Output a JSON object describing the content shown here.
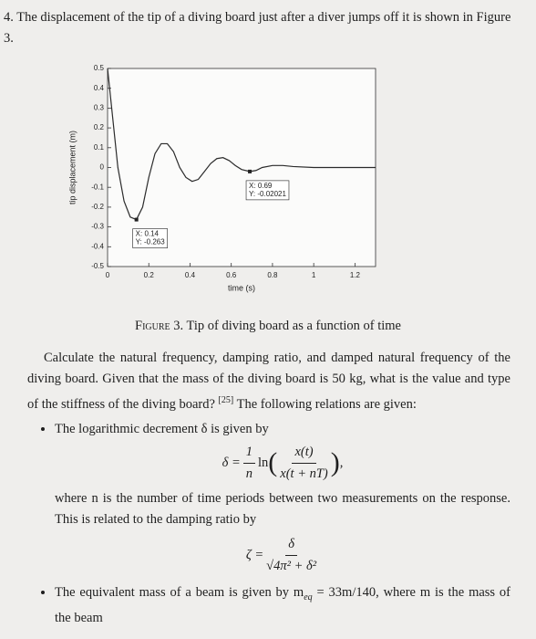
{
  "problem": {
    "number": "4.",
    "intro": "The displacement of the tip of a diving board just after a diver jumps off it is shown in Figure 3."
  },
  "figure": {
    "chart_data": {
      "type": "line",
      "x_label": "time (s)",
      "y_label": "tip displacement (m)",
      "xlim": [
        0,
        1.3
      ],
      "ylim": [
        -0.5,
        0.5
      ],
      "xticks": [
        0,
        0.2,
        0.4,
        0.6,
        0.8,
        1,
        1.2
      ],
      "yticks": [
        -0.5,
        -0.4,
        -0.3,
        -0.2,
        -0.1,
        0,
        0.1,
        0.2,
        0.3,
        0.4,
        0.5
      ],
      "grid": false,
      "series": [
        {
          "color": "#2b2b2b",
          "x": [
            0,
            0.02,
            0.05,
            0.08,
            0.11,
            0.14,
            0.17,
            0.2,
            0.23,
            0.26,
            0.29,
            0.32,
            0.35,
            0.38,
            0.41,
            0.44,
            0.47,
            0.5,
            0.53,
            0.56,
            0.59,
            0.62,
            0.65,
            0.69,
            0.72,
            0.75,
            0.8,
            0.85,
            0.9,
            1.0,
            1.1,
            1.2,
            1.3
          ],
          "values": [
            0.5,
            0.3,
            0.0,
            -0.17,
            -0.25,
            -0.263,
            -0.2,
            -0.05,
            0.07,
            0.12,
            0.12,
            0.08,
            0.0,
            -0.05,
            -0.07,
            -0.06,
            -0.02,
            0.02,
            0.045,
            0.05,
            0.035,
            0.01,
            -0.01,
            -0.02021,
            -0.015,
            0.0,
            0.01,
            0.01,
            0.005,
            0.0,
            0.0,
            0.0,
            0.0
          ]
        }
      ],
      "data_tips": [
        {
          "x": {
            "value": 0.14,
            "label": "X: 0.14"
          },
          "y": {
            "value": -0.263,
            "label": "Y: -0.263"
          }
        },
        {
          "x": {
            "value": 0.69,
            "label": "X: 0.69"
          },
          "y": {
            "value": -0.02021,
            "label": "Y: -0.02021"
          }
        }
      ]
    },
    "caption_label": "Figure 3.",
    "caption": "Tip of diving board as a function of time"
  },
  "body": {
    "paragraph": "Calculate the natural frequency, damping ratio, and damped natural frequency of the diving board. Given that the mass of the diving board is 50 kg, what is the value and type of the stiffness of the diving board?",
    "reference": "[25]",
    "paragraph_end": "The following relations are given:",
    "bullet1": "The logarithmic decrement δ is given by",
    "eq1": {
      "lhs": "δ =",
      "coef_num": "1",
      "coef_den": "n",
      "fn": "ln",
      "num": "x(t)",
      "den": "x(t + nT)",
      "trail": ","
    },
    "between": "where n is the number of time periods between two measurements on the response. This is related to the damping ratio by",
    "eq2": {
      "lhs": "ζ =",
      "num": "δ",
      "den": "√4π² + δ²"
    },
    "bullet2": "The equivalent mass of a beam is given by m",
    "bullet2_sub": "eq",
    "bullet2_end": " = 33m/140, where m is the mass of the beam"
  }
}
